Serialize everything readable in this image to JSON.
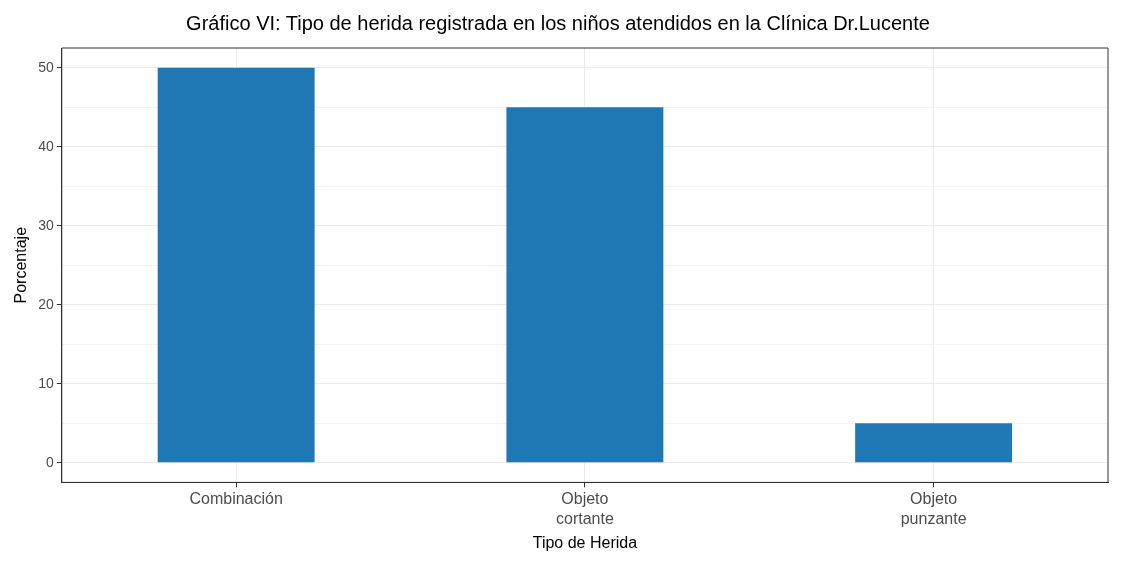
{
  "chart_data": {
    "type": "bar",
    "title": "Gráfico VI: Tipo de herida registrada en los niños atendidos en la Clínica Dr.Lucente",
    "xlabel": "Tipo de Herida",
    "ylabel": "Porcentaje",
    "categories": [
      "Combinación",
      "Objeto cortante",
      "Objeto punzante"
    ],
    "values": [
      50,
      45,
      5
    ],
    "color": "#1f77b4",
    "ylim": [
      -2.5,
      52.5
    ],
    "yticks": [
      0,
      {
        "value": 5,
        "label": null
      },
      10,
      {
        "value": 15,
        "label": null
      },
      20,
      {
        "value": 25,
        "label": null
      },
      30,
      {
        "value": 35,
        "label": null
      },
      40,
      {
        "value": 45,
        "label": null
      },
      50
    ],
    "grid": true,
    "legend": false
  }
}
